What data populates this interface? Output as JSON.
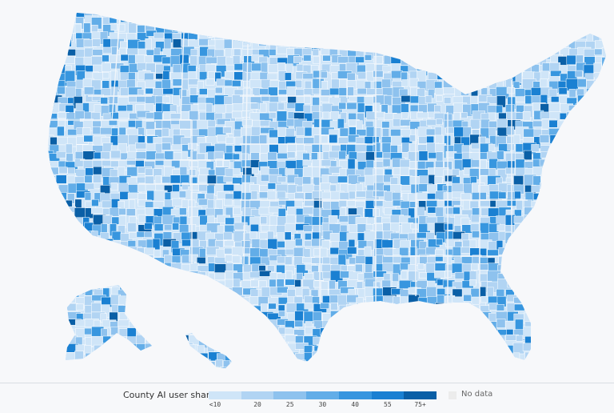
{
  "legend": {
    "title": "County AI user share",
    "bins": [
      {
        "label": "<10",
        "color": "#cfe5f8"
      },
      {
        "label": "20",
        "color": "#b1d4f3"
      },
      {
        "label": "25",
        "color": "#8ec2ee"
      },
      {
        "label": "30",
        "color": "#62ade8"
      },
      {
        "label": "40",
        "color": "#3796df"
      },
      {
        "label": "55",
        "color": "#1a80d2"
      },
      {
        "label": "75+",
        "color": "#0a5fa6"
      }
    ],
    "no_data_label": "No data",
    "no_data_color": "#ececec"
  },
  "map": {
    "border_color": "#ffffff",
    "state_border_color": "#f2f6fa"
  }
}
